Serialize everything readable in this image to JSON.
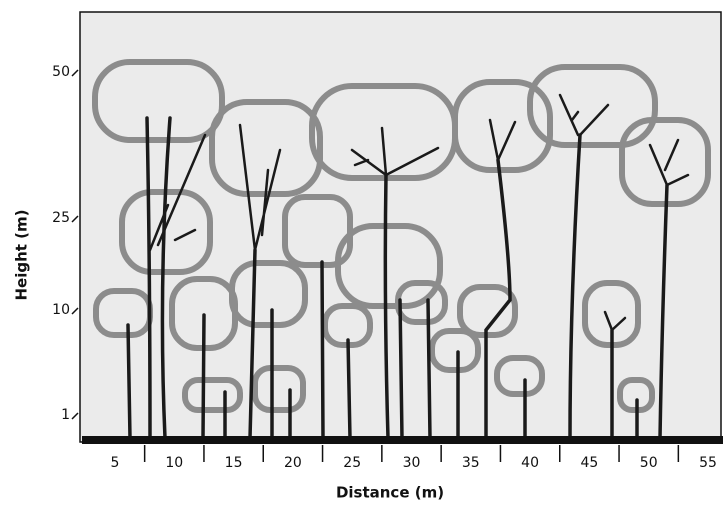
{
  "axes": {
    "x": {
      "label": "Distance (m)",
      "ticks": [
        "5",
        "10",
        "15",
        "20",
        "25",
        "30",
        "35",
        "40",
        "45",
        "50",
        "55"
      ]
    },
    "y": {
      "label": "Height (m)",
      "ticks": [
        "50",
        "25",
        "10",
        "1"
      ]
    }
  }
}
